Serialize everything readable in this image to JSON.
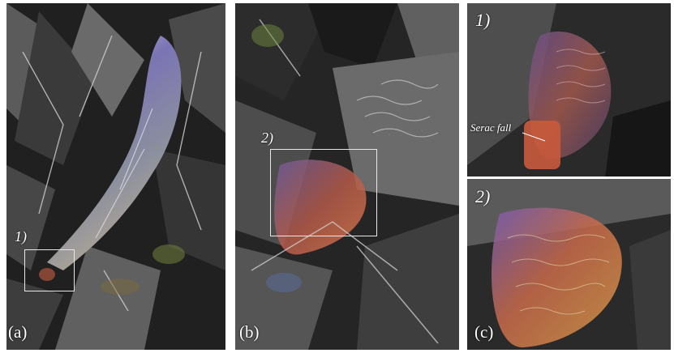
{
  "panels": [
    {
      "label": "(a)",
      "zoom_label": "1)"
    },
    {
      "label": "(b)",
      "zoom_label": "2)"
    },
    {
      "label": "(c)",
      "zoom_labels": [
        "1)",
        "2)"
      ],
      "annotation": "Serac fall"
    }
  ],
  "colors": {
    "box_outline": "#e8e8e8",
    "background": "#1e1e1e"
  }
}
